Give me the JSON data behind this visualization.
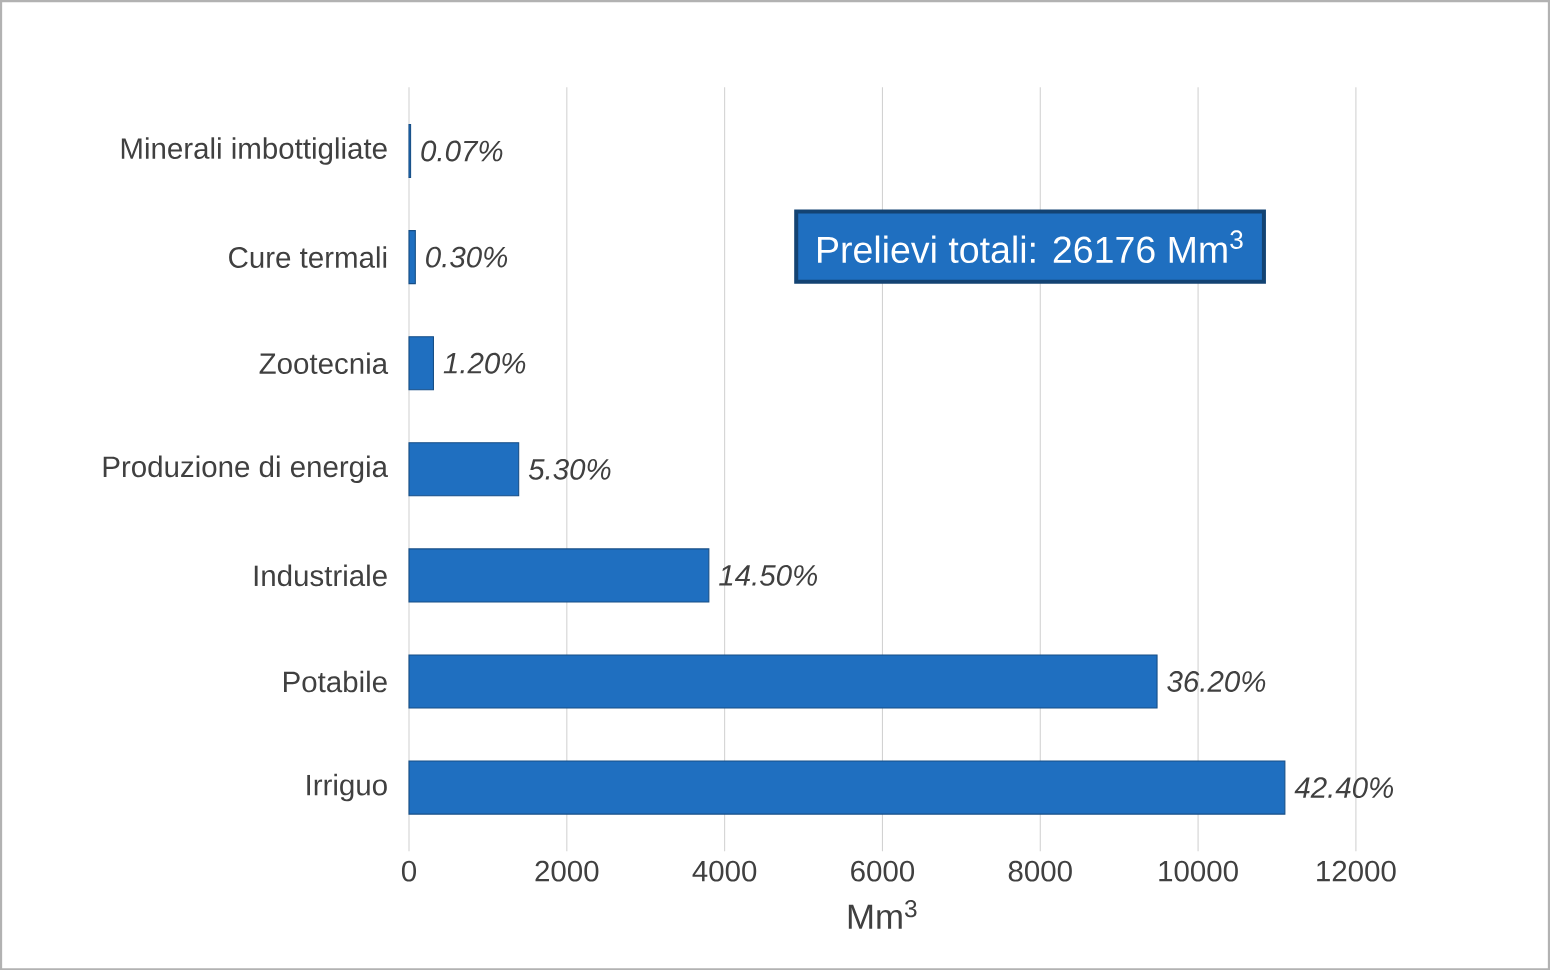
{
  "chart_data": {
    "type": "bar",
    "orientation": "horizontal",
    "categories": [
      "Minerali imbottigliate",
      "Cure termali",
      "Zootecnia",
      "Produzione di energia",
      "Industriale",
      "Potabile",
      "Irriguo"
    ],
    "values": [
      20,
      80,
      310,
      1390,
      3800,
      9480,
      11100
    ],
    "color": "#1f6fc0",
    "xlabel": "Mm$^{3}$",
    "xlim": [
      0,
      12000
    ],
    "xticks": [
      0,
      2000,
      4000,
      6000,
      8000,
      10000,
      12000
    ],
    "grid": "x",
    "annotations": [
      "Prelievi totali: 26176 Mm$^{3}$",
      {
        "text": "0.07%",
        "x": 20,
        "y": "Minerali imbottigliate"
      },
      {
        "text": "0.30%",
        "x": 80,
        "y": "Cure termali"
      },
      {
        "text": "1.20%",
        "x": 310,
        "y": "Zootecnia"
      },
      {
        "text": "5.30%",
        "x": 1390,
        "y": "Produzione di energia"
      },
      {
        "text": "14.50%",
        "x": 3800,
        "y": "Industriale"
      },
      {
        "text": "36.20%",
        "x": 9480,
        "y": "Potabile"
      },
      {
        "text": "42.40%",
        "x": 11100,
        "y": "Irriguo"
      }
    ]
  }
}
